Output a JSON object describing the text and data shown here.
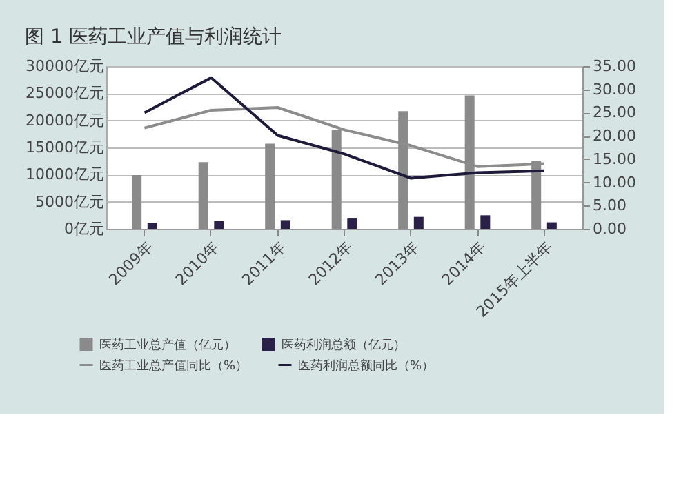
{
  "chart_data": {
    "type": "bar",
    "title": "图 1    医药工业产值与利润统计",
    "categories": [
      "2009年",
      "2010年",
      "2011年",
      "2012年",
      "2013年",
      "2014年",
      "2015年上半年"
    ],
    "series": [
      {
        "name": "医药工业总产值（亿元）",
        "color": "#8a8a8a",
        "values": [
          9900,
          12300,
          15700,
          18300,
          21700,
          24600,
          12500
        ]
      },
      {
        "name": "医药利润总额（亿元）",
        "color": "#2b2148",
        "values": [
          1100,
          1400,
          1600,
          1900,
          2200,
          2500,
          1200
        ]
      },
      {
        "name": "医药工业总产值同比（%）",
        "type": "line",
        "axis": "y2",
        "color": "#8c8c8c",
        "values": [
          21.7,
          25.5,
          26.1,
          21.3,
          17.9,
          13.4,
          14.0
        ]
      },
      {
        "name": "医药利润总额同比（%）",
        "type": "line",
        "axis": "y2",
        "color": "#1e1b3a",
        "values": [
          25.0,
          32.5,
          20.1,
          16.1,
          10.9,
          12.1,
          12.5
        ]
      }
    ],
    "ylim": [
      0,
      30000
    ],
    "yticks": [
      {
        "value": 0,
        "label": "0亿元"
      },
      {
        "value": 5000,
        "label": "5000亿元"
      },
      {
        "value": 10000,
        "label": "10000亿元"
      },
      {
        "value": 15000,
        "label": "15000亿元"
      },
      {
        "value": 20000,
        "label": "20000亿元"
      },
      {
        "value": 25000,
        "label": "25000亿元"
      },
      {
        "value": 30000,
        "label": "30000亿元"
      }
    ],
    "y2lim": [
      0,
      35
    ],
    "y2ticks": [
      {
        "value": 0,
        "label": "0.00"
      },
      {
        "value": 5,
        "label": "5.00"
      },
      {
        "value": 10,
        "label": "10.00"
      },
      {
        "value": 15,
        "label": "15.00"
      },
      {
        "value": 20,
        "label": "20.00"
      },
      {
        "value": 25,
        "label": "25.00"
      },
      {
        "value": 30,
        "label": "30.00"
      },
      {
        "value": 35,
        "label": "35.00"
      }
    ],
    "grid": "y",
    "legend": "bottom",
    "marker": "none",
    "line_style": "solid"
  }
}
